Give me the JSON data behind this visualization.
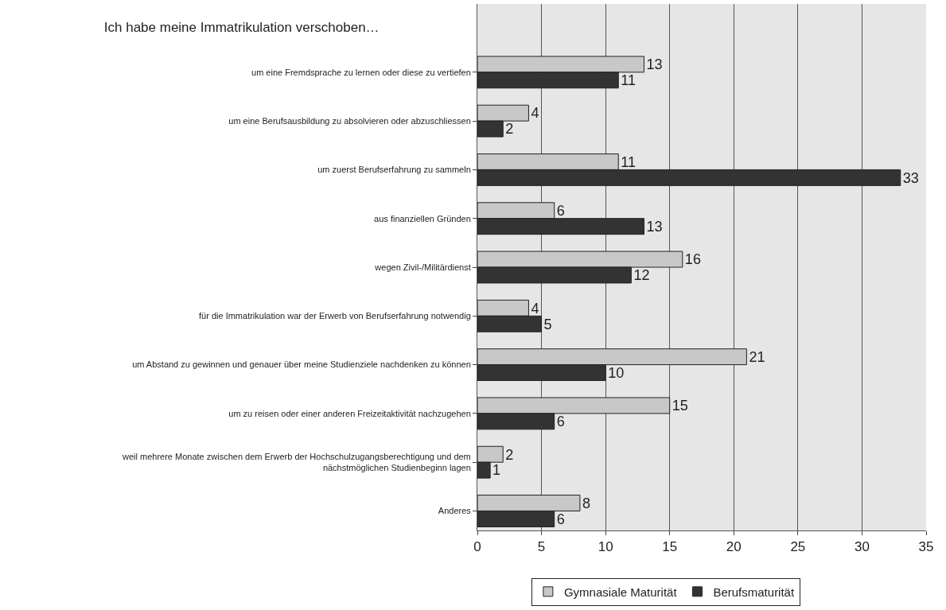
{
  "chart_data": {
    "type": "bar",
    "orientation": "horizontal",
    "title": "Ich habe meine Immatrikulation verschoben…",
    "categories": [
      "um eine Fremdsprache zu lernen oder diese zu vertiefen",
      "um eine Berufsausbildung zu absolvieren oder abzuschliessen",
      "um zuerst Berufserfahrung zu sammeln",
      "aus finanziellen Gründen",
      "wegen Zivil-/Militärdienst",
      "für die Immatrikulation war der Erwerb von Berufserfahrung notwendig",
      "um Abstand zu gewinnen und genauer über meine Studienziele nachdenken zu können",
      "um zu reisen oder einer anderen Freizeitaktivität nachzugehen",
      "weil mehrere Monate zwischen dem Erwerb der Hochschulzugangsberechtigung und dem\nnächstmöglichen Studienbeginn lagen",
      "Anderes"
    ],
    "series": [
      {
        "name": "Gymnasiale Maturität",
        "color": "#c8c8c8",
        "values": [
          13,
          4,
          11,
          6,
          16,
          4,
          21,
          15,
          2,
          8
        ]
      },
      {
        "name": "Berufsmaturität",
        "color": "#333333",
        "values": [
          11,
          2,
          33,
          13,
          12,
          5,
          10,
          6,
          1,
          6
        ]
      }
    ],
    "xlim": [
      0,
      35
    ],
    "xticks": [
      0,
      5,
      10,
      15,
      20,
      25,
      30,
      35
    ],
    "grid": "x",
    "legend": "bottom",
    "data_labels": true
  }
}
